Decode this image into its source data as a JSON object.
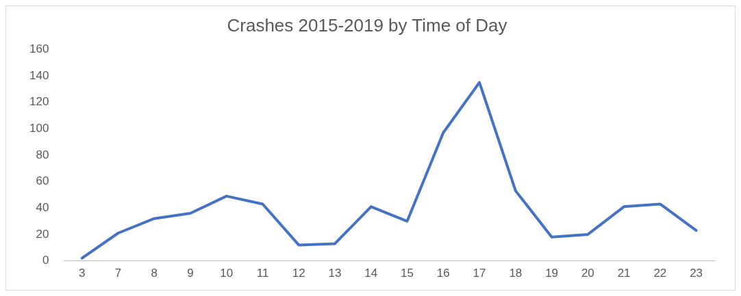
{
  "chart_data": {
    "type": "line",
    "title": "Crashes 2015-2019 by Time of Day",
    "categories": [
      "3",
      "7",
      "8",
      "9",
      "10",
      "11",
      "12",
      "13",
      "14",
      "15",
      "16",
      "17",
      "18",
      "19",
      "20",
      "21",
      "22",
      "23"
    ],
    "series": [
      {
        "color": "#4472c4",
        "values": [
          2,
          21,
          32,
          36,
          49,
          43,
          12,
          13,
          41,
          30,
          97,
          135,
          53,
          18,
          20,
          41,
          43,
          23
        ]
      }
    ],
    "ylim": [
      0,
      160
    ],
    "yticks": [
      0,
      20,
      40,
      60,
      80,
      100,
      120,
      140,
      160
    ],
    "grid": false,
    "legend": false,
    "marker": "none",
    "line_style": "solid"
  }
}
